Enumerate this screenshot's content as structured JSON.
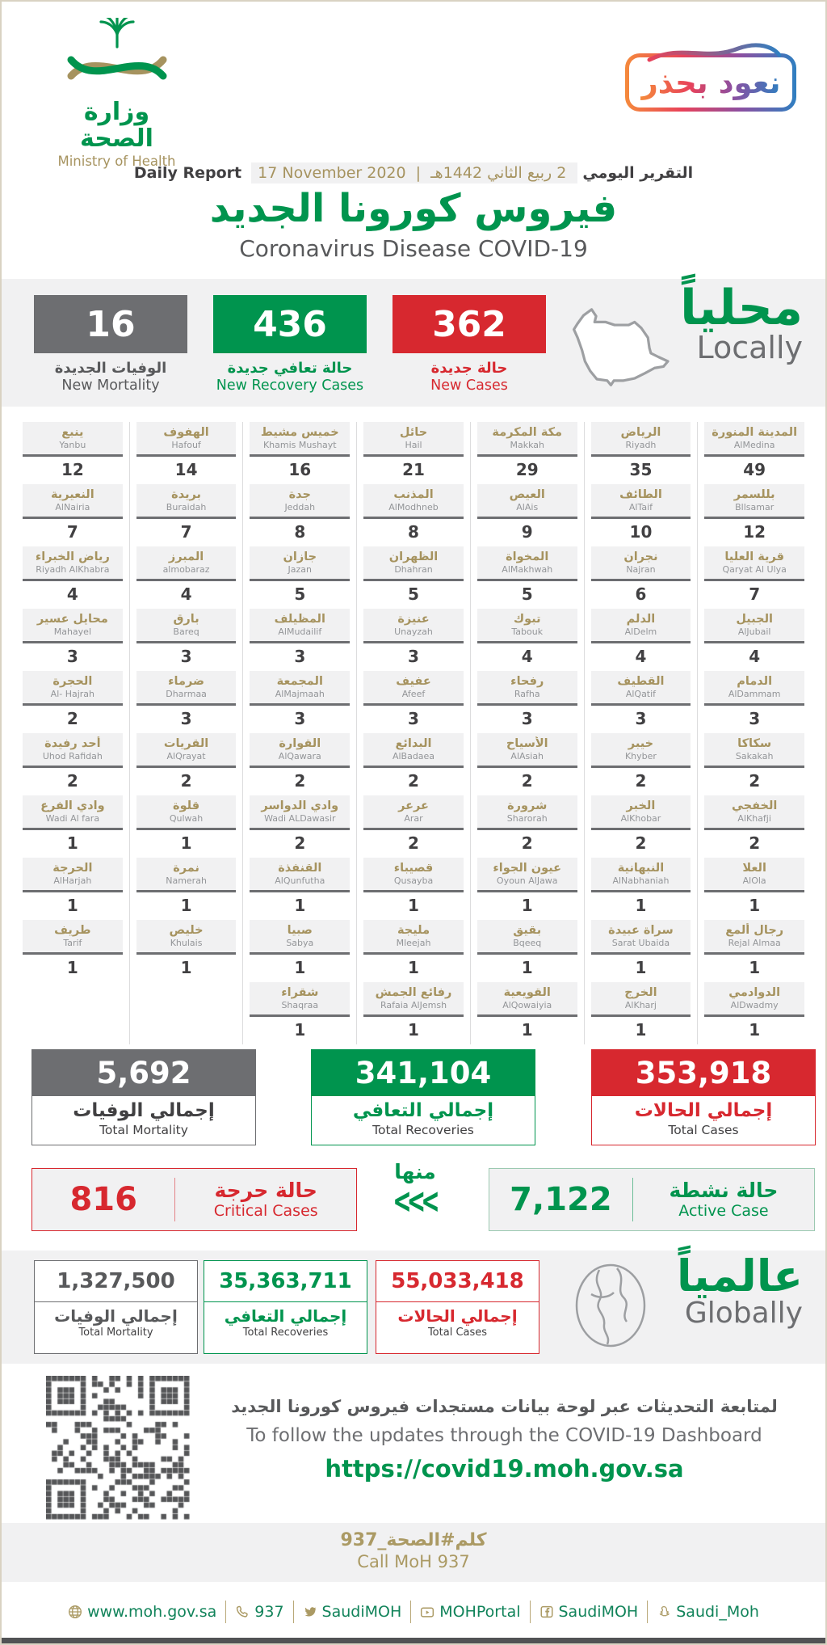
{
  "page": {
    "logo": {
      "ar": "وزارة الصحة",
      "en": "Ministry of Health"
    },
    "badge": {
      "text": "نعود بحذر"
    },
    "report_line": {
      "daily_report_en": "Daily Report",
      "date_en": "17 November 2020",
      "separator": "|",
      "date_ar": "2 ربيع الثاني 1442هـ",
      "daily_report_ar": "التقرير اليومي"
    },
    "title_ar": "فيروس كورونا الجديد",
    "title_en": "Coronavirus Disease COVID-19"
  },
  "colors": {
    "green": "#00944e",
    "red": "#d7282f",
    "gray": "#6d6e71",
    "gold": "#a6935f",
    "band": "#f1f1f2"
  },
  "locally": {
    "heading_ar": "محلياً",
    "heading_en": "Locally",
    "stats": [
      {
        "name": "new-mortality",
        "value": "16",
        "label_ar": "الوفيات الجديدة",
        "label_en": "New Mortality",
        "color": "#6d6e71",
        "text_color": "#58595b"
      },
      {
        "name": "new-recoveries",
        "value": "436",
        "label_ar": "حالة تعافي جديدة",
        "label_en": "New Recovery Cases",
        "color": "#00944e",
        "text_color": "#00944e"
      },
      {
        "name": "new-cases",
        "value": "362",
        "label_ar": "حالة جديدة",
        "label_en": "New Cases",
        "color": "#d7282f",
        "text_color": "#d7282f"
      }
    ]
  },
  "cities": {
    "columns": [
      {
        "items": [
          {
            "ar": "ينبع",
            "en": "Yanbu",
            "value": "12"
          },
          {
            "ar": "النعيرية",
            "en": "AlNairia",
            "value": "7"
          },
          {
            "ar": "رياض الخبراء",
            "en": "Riyadh AlKhabra",
            "value": "4"
          },
          {
            "ar": "محايل عسير",
            "en": "Mahayel",
            "value": "3"
          },
          {
            "ar": "الحجرة",
            "en": "Al- Hajrah",
            "value": "2"
          },
          {
            "ar": "أحد رفيدة",
            "en": "Uhod Rafidah",
            "value": "2"
          },
          {
            "ar": "وادي الفرع",
            "en": "Wadi Al fara",
            "value": "1"
          },
          {
            "ar": "الحرجة",
            "en": "AlHarjah",
            "value": "1"
          },
          {
            "ar": "طريف",
            "en": "Tarif",
            "value": "1"
          }
        ]
      },
      {
        "items": [
          {
            "ar": "الهفوف",
            "en": "Hafouf",
            "value": "14"
          },
          {
            "ar": "بريدة",
            "en": "Buraidah",
            "value": "7"
          },
          {
            "ar": "المبرز",
            "en": "almobaraz",
            "value": "4"
          },
          {
            "ar": "بارق",
            "en": "Bareq",
            "value": "3"
          },
          {
            "ar": "ضرماء",
            "en": "Dharmaa",
            "value": "3"
          },
          {
            "ar": "القريات",
            "en": "AlQrayat",
            "value": "2"
          },
          {
            "ar": "قلوة",
            "en": "Qulwah",
            "value": "1"
          },
          {
            "ar": "نمرة",
            "en": "Namerah",
            "value": "1"
          },
          {
            "ar": "خليص",
            "en": "Khulais",
            "value": "1"
          }
        ]
      },
      {
        "items": [
          {
            "ar": "خميس مشيط",
            "en": "Khamis Mushayt",
            "value": "16"
          },
          {
            "ar": "جدة",
            "en": "Jeddah",
            "value": "8"
          },
          {
            "ar": "جازان",
            "en": "Jazan",
            "value": "5"
          },
          {
            "ar": "المظيلف",
            "en": "AlMudailif",
            "value": "3"
          },
          {
            "ar": "المجمعة",
            "en": "AlMajmaah",
            "value": "3"
          },
          {
            "ar": "القوارة",
            "en": "AlQawara",
            "value": "2"
          },
          {
            "ar": "وادي الدواسر",
            "en": "Wadi ALDawasir",
            "value": "2"
          },
          {
            "ar": "القنفذة",
            "en": "AlQunfutha",
            "value": "1"
          },
          {
            "ar": "صبيا",
            "en": "Sabya",
            "value": "1"
          },
          {
            "ar": "شقراء",
            "en": "Shaqraa",
            "value": "1"
          }
        ]
      },
      {
        "items": [
          {
            "ar": "حائل",
            "en": "Hail",
            "value": "21"
          },
          {
            "ar": "المذنب",
            "en": "AlModhneb",
            "value": "8"
          },
          {
            "ar": "الظهران",
            "en": "Dhahran",
            "value": "5"
          },
          {
            "ar": "عنيزة",
            "en": "Unayzah",
            "value": "3"
          },
          {
            "ar": "عفيف",
            "en": "Afeef",
            "value": "3"
          },
          {
            "ar": "البدائع",
            "en": "AlBadaea",
            "value": "2"
          },
          {
            "ar": "عرعر",
            "en": "Arar",
            "value": "2"
          },
          {
            "ar": "قصيباء",
            "en": "Qusayba",
            "value": "1"
          },
          {
            "ar": "مليجة",
            "en": "Mleejah",
            "value": "1"
          },
          {
            "ar": "رفائع الجمش",
            "en": "Rafaia AlJemsh",
            "value": "1"
          }
        ]
      },
      {
        "items": [
          {
            "ar": "مكة المكرمة",
            "en": "Makkah",
            "value": "29"
          },
          {
            "ar": "العيص",
            "en": "AlAis",
            "value": "9"
          },
          {
            "ar": "المخواة",
            "en": "AlMakhwah",
            "value": "5"
          },
          {
            "ar": "تبوك",
            "en": "Tabouk",
            "value": "4"
          },
          {
            "ar": "رفحاء",
            "en": "Rafha",
            "value": "3"
          },
          {
            "ar": "الأسياح",
            "en": "AlAsiah",
            "value": "2"
          },
          {
            "ar": "شرورة",
            "en": "Sharorah",
            "value": "2"
          },
          {
            "ar": "عيون الجواء",
            "en": "Oyoun AlJawa",
            "value": "1"
          },
          {
            "ar": "بقيق",
            "en": "Bqeeq",
            "value": "1"
          },
          {
            "ar": "القويعية",
            "en": "AlQowaiyia",
            "value": "1"
          }
        ]
      },
      {
        "items": [
          {
            "ar": "الرياض",
            "en": "Riyadh",
            "value": "35"
          },
          {
            "ar": "الطائف",
            "en": "AlTaif",
            "value": "10"
          },
          {
            "ar": "نجران",
            "en": "Najran",
            "value": "6"
          },
          {
            "ar": "الدلم",
            "en": "AlDelm",
            "value": "4"
          },
          {
            "ar": "القطيف",
            "en": "AlQatif",
            "value": "3"
          },
          {
            "ar": "خيبر",
            "en": "Khyber",
            "value": "2"
          },
          {
            "ar": "الخبر",
            "en": "AlKhobar",
            "value": "2"
          },
          {
            "ar": "النبهانية",
            "en": "AlNabhaniah",
            "value": "1"
          },
          {
            "ar": "سراة عبيدة",
            "en": "Sarat Ubaida",
            "value": "1"
          },
          {
            "ar": "الخرج",
            "en": "AlKharj",
            "value": "1"
          }
        ]
      },
      {
        "items": [
          {
            "ar": "المدينة المنورة",
            "en": "AlMedina",
            "value": "49"
          },
          {
            "ar": "بللسمر",
            "en": "Bllsamar",
            "value": "12"
          },
          {
            "ar": "قرية العليا",
            "en": "Qaryat Al Ulya",
            "value": "7"
          },
          {
            "ar": "الجبيل",
            "en": "AlJubail",
            "value": "4"
          },
          {
            "ar": "الدمام",
            "en": "AlDammam",
            "value": "3"
          },
          {
            "ar": "سكاكا",
            "en": "Sakakah",
            "value": "2"
          },
          {
            "ar": "الخفجي",
            "en": "AlKhafji",
            "value": "2"
          },
          {
            "ar": "العلا",
            "en": "AlOla",
            "value": "1"
          },
          {
            "ar": "رجال ألمع",
            "en": "Rejal Almaa",
            "value": "1"
          },
          {
            "ar": "الدوادمي",
            "en": "AlDwadmy",
            "value": "1"
          }
        ]
      }
    ]
  },
  "totals": [
    {
      "name": "total-mortality",
      "value": "5,692",
      "label_ar": "إجمالي الوفيات",
      "label_en": "Total Mortality",
      "color": "#6d6e71",
      "label_ar_color": "#414042"
    },
    {
      "name": "total-recoveries",
      "value": "341,104",
      "label_ar": "إجمالي التعافي",
      "label_en": "Total Recoveries",
      "color": "#00944e",
      "label_ar_color": "#00944e"
    },
    {
      "name": "total-cases",
      "value": "353,918",
      "label_ar": "إجمالي الحالات",
      "label_en": "Total Cases",
      "color": "#d7282f",
      "label_ar_color": "#d7282f"
    }
  ],
  "status": {
    "critical": {
      "value": "816",
      "label_ar": "حالة حرجة",
      "label_en": "Critical Cases"
    },
    "of_which": "منها",
    "chevrons": "<<<",
    "active": {
      "value": "7,122",
      "label_ar": "حالة نشطة",
      "label_en": "Active Case"
    }
  },
  "globally": {
    "heading_ar": "عالمياً",
    "heading_en": "Globally",
    "stats": [
      {
        "name": "global-total-mortality",
        "value": "1,327,500",
        "label_ar": "إجمالي الوفيات",
        "label_en": "Total Mortality",
        "color": "#6d6e71",
        "value_color": "#58595b"
      },
      {
        "name": "global-total-recoveries",
        "value": "35,363,711",
        "label_ar": "إجمالي التعافي",
        "label_en": "Total Recoveries",
        "color": "#00944e",
        "value_color": "#00944e"
      },
      {
        "name": "global-total-cases",
        "value": "55,033,418",
        "label_ar": "إجمالي الحالات",
        "label_en": "Total Cases",
        "color": "#d7282f",
        "value_color": "#d7282f"
      }
    ]
  },
  "dashboard": {
    "line_ar": "لمتابعة التحديثات عبر لوحة بيانات مستجدات فيروس كورونا الجديد",
    "line_en": "To follow the updates through the COVID-19 Dashboard",
    "url": "https://covid19.moh.gov.sa"
  },
  "call": {
    "ar": "كلم#الصحة_937",
    "en": "Call MoH 937"
  },
  "footer": {
    "links": [
      {
        "icon": "globe-icon",
        "label": "www.moh.gov.sa"
      },
      {
        "icon": "phone-icon",
        "label": "937"
      },
      {
        "icon": "twitter-icon",
        "label": "SaudiMOH"
      },
      {
        "icon": "youtube-icon",
        "label": "MOHPortal"
      },
      {
        "icon": "facebook-icon",
        "label": "SaudiMOH"
      },
      {
        "icon": "snapchat-icon",
        "label": "Saudi_Moh"
      }
    ]
  }
}
